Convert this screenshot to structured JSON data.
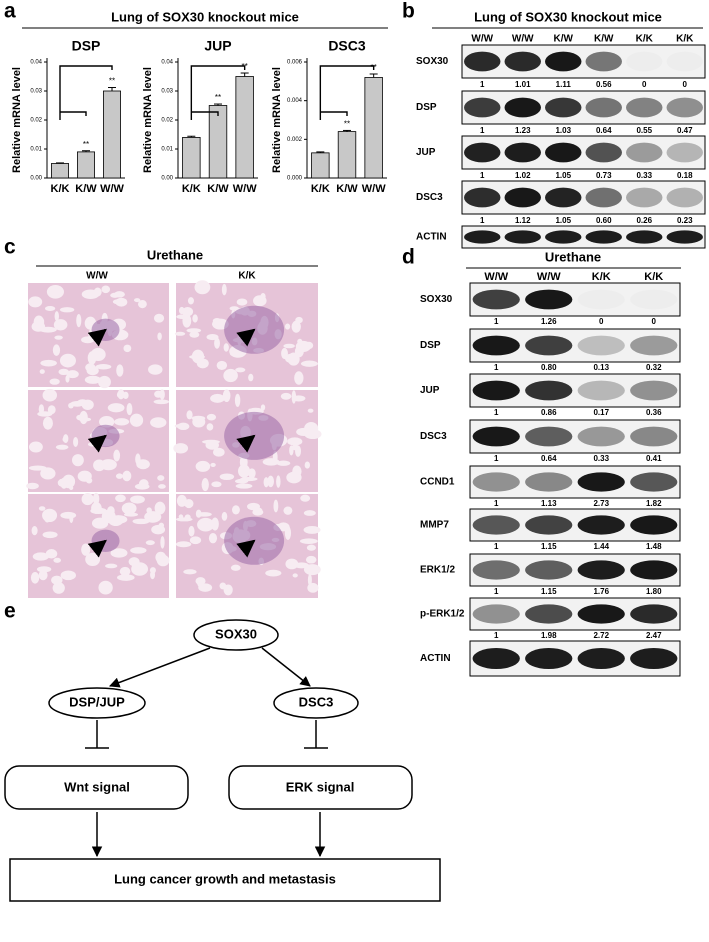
{
  "panel_labels": [
    "a",
    "b",
    "c",
    "d",
    "e"
  ],
  "panel_a": {
    "title": "Lung of SOX30 knockout mice"
  },
  "chart_data": [
    {
      "type": "bar",
      "title": "DSP",
      "y_label": "Relative mRNA level",
      "categories": [
        "K/K",
        "K/W",
        "W/W"
      ],
      "values": [
        0.005,
        0.009,
        0.03
      ],
      "errors": [
        0.0002,
        0.0004,
        0.0012
      ],
      "significance": [
        null,
        "**",
        "**"
      ],
      "color": "#c8c8c8",
      "ylim": [
        0,
        0.04
      ],
      "yticks": [
        {
          "value": 0,
          "label": "0.00"
        },
        0.01,
        0.02,
        0.03,
        0.04
      ]
    },
    {
      "type": "bar",
      "title": "JUP",
      "y_label": "Relative mRNA level",
      "categories": [
        "K/K",
        "K/W",
        "W/W"
      ],
      "values": [
        0.014,
        0.025,
        0.035
      ],
      "errors": [
        0.0004,
        0.0005,
        0.0012
      ],
      "significance": [
        null,
        "**",
        "**"
      ],
      "color": "#c8c8c8",
      "ylim": [
        0,
        0.04
      ],
      "yticks": [
        {
          "value": 0,
          "label": "0.00"
        },
        0.01,
        0.02,
        0.03,
        0.04
      ]
    },
    {
      "type": "bar",
      "title": "DSC3",
      "y_label": "Relative mRNA level",
      "categories": [
        "K/K",
        "K/W",
        "W/W"
      ],
      "values": [
        0.0013,
        0.0024,
        0.0052
      ],
      "errors": [
        5e-05,
        6e-05,
        0.00018
      ],
      "significance": [
        null,
        "**",
        "**"
      ],
      "color": "#c8c8c8",
      "ylim": [
        0,
        0.006
      ],
      "yticks": [
        {
          "value": 0,
          "label": "0.000"
        },
        0.002,
        0.004,
        0.006
      ]
    }
  ],
  "panel_b": {
    "title": "Lung of SOX30 knockout mice",
    "columns": [
      "W/W",
      "W/W",
      "K/W",
      "K/W",
      "K/K",
      "K/K"
    ],
    "rows": [
      {
        "label": "SOX30",
        "values": [
          "1",
          "1.01",
          "1.11",
          "0.56",
          "0",
          "0"
        ]
      },
      {
        "label": "DSP",
        "values": [
          "1",
          "1.23",
          "1.03",
          "0.64",
          "0.55",
          "0.47"
        ]
      },
      {
        "label": "JUP",
        "values": [
          "1",
          "1.02",
          "1.05",
          "0.73",
          "0.33",
          "0.18"
        ]
      },
      {
        "label": "DSC3",
        "values": [
          "1",
          "1.12",
          "1.05",
          "0.60",
          "0.26",
          "0.23"
        ]
      },
      {
        "label": "ACTIN"
      }
    ]
  },
  "panel_c": {
    "title": "Urethane",
    "columns": [
      "W/W",
      "K/K"
    ]
  },
  "panel_d": {
    "title": "Urethane",
    "columns": [
      "W/W",
      "W/W",
      "K/K",
      "K/K"
    ],
    "rows": [
      {
        "label": "SOX30",
        "values": [
          "1",
          "1.26",
          "0",
          "0"
        ]
      },
      {
        "label": "DSP",
        "values": [
          "1",
          "0.80",
          "0.13",
          "0.32"
        ]
      },
      {
        "label": "JUP",
        "values": [
          "1",
          "0.86",
          "0.17",
          "0.36"
        ]
      },
      {
        "label": "DSC3",
        "values": [
          "1",
          "0.64",
          "0.33",
          "0.41"
        ]
      },
      {
        "label": "CCND1",
        "values": [
          "1",
          "1.13",
          "2.73",
          "1.82"
        ]
      },
      {
        "label": "MMP7",
        "values": [
          "1",
          "1.15",
          "1.44",
          "1.48"
        ]
      },
      {
        "label": "ERK1/2",
        "values": [
          "1",
          "1.15",
          "1.76",
          "1.80"
        ]
      },
      {
        "label": "p-ERK1/2",
        "values": [
          "1",
          "1.98",
          "2.72",
          "2.47"
        ]
      },
      {
        "label": "ACTIN"
      }
    ]
  },
  "panel_e": {
    "nodes": [
      "SOX30",
      "DSP/JUP",
      "DSC3",
      "Wnt signal",
      "ERK signal",
      "Lung cancer growth and metastasis"
    ]
  }
}
